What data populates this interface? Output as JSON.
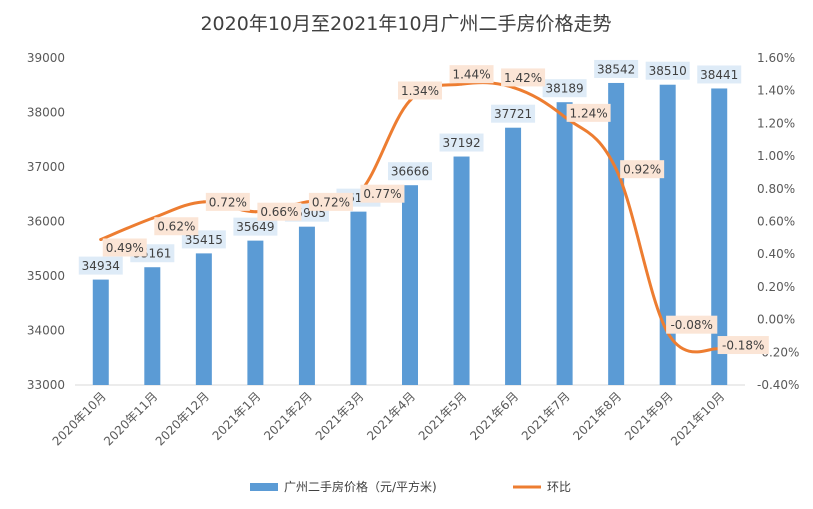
{
  "chart_data": {
    "type": "bar",
    "title": "2020年10月至2021年10月广州二手房价格走势",
    "categories": [
      "2020年10月",
      "2020年11月",
      "2020年12月",
      "2021年1月",
      "2021年2月",
      "2021年3月",
      "2021年4月",
      "2021年5月",
      "2021年6月",
      "2021年7月",
      "2021年8月",
      "2021年9月",
      "2021年10月"
    ],
    "series": [
      {
        "name": "广州二手房价格（元/平方米)",
        "type": "bar",
        "axis": "left",
        "color": "#5b9bd5",
        "values": [
          34934,
          35161,
          35415,
          35649,
          35905,
          36181,
          36666,
          37192,
          37721,
          38189,
          38542,
          38510,
          38441
        ],
        "labels": [
          "34934",
          "35161",
          "35415",
          "35649",
          "35905",
          "36181",
          "36666",
          "37192",
          "37721",
          "38189",
          "38542",
          "38510",
          "38441"
        ]
      },
      {
        "name": "环比",
        "type": "line",
        "axis": "right",
        "color": "#ed7d31",
        "values": [
          0.49,
          0.62,
          0.72,
          0.66,
          0.72,
          0.77,
          1.34,
          1.44,
          1.42,
          1.24,
          0.92,
          -0.08,
          -0.18
        ],
        "labels": [
          "0.49%",
          "0.62%",
          "0.72%",
          "0.66%",
          "0.72%",
          "0.77%",
          "1.34%",
          "1.44%",
          "1.42%",
          "1.24%",
          "0.92%",
          "-0.08%",
          "-0.18%"
        ]
      }
    ],
    "y_left": {
      "min": 33000,
      "max": 39000,
      "ticks": [
        33000,
        34000,
        35000,
        36000,
        37000,
        38000,
        39000
      ],
      "tick_labels": [
        "33000",
        "34000",
        "35000",
        "36000",
        "37000",
        "38000",
        "39000"
      ]
    },
    "y_right": {
      "min": -0.4,
      "max": 1.6,
      "ticks": [
        -0.4,
        -0.2,
        0,
        0.2,
        0.4,
        0.6,
        0.8,
        1.0,
        1.2,
        1.4,
        1.6
      ],
      "tick_labels": [
        "-0.40%",
        "-0.20%",
        "0.00%",
        "0.20%",
        "0.40%",
        "0.60%",
        "0.80%",
        "1.00%",
        "1.20%",
        "1.40%",
        "1.60%"
      ]
    },
    "grid": false,
    "legend_position": "bottom",
    "bar_label_bg": "#deebf7",
    "line_label_bg": "#fbe5d6"
  }
}
